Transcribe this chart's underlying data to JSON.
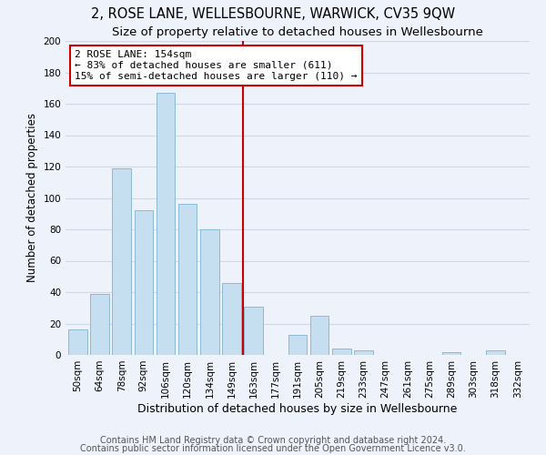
{
  "title1": "2, ROSE LANE, WELLESBOURNE, WARWICK, CV35 9QW",
  "title2": "Size of property relative to detached houses in Wellesbourne",
  "xlabel": "Distribution of detached houses by size in Wellesbourne",
  "ylabel": "Number of detached properties",
  "footer1": "Contains HM Land Registry data © Crown copyright and database right 2024.",
  "footer2": "Contains public sector information licensed under the Open Government Licence v3.0.",
  "bar_labels": [
    "50sqm",
    "64sqm",
    "78sqm",
    "92sqm",
    "106sqm",
    "120sqm",
    "134sqm",
    "149sqm",
    "163sqm",
    "177sqm",
    "191sqm",
    "205sqm",
    "219sqm",
    "233sqm",
    "247sqm",
    "261sqm",
    "275sqm",
    "289sqm",
    "303sqm",
    "318sqm",
    "332sqm"
  ],
  "bar_values": [
    16,
    39,
    119,
    92,
    167,
    96,
    80,
    46,
    31,
    0,
    13,
    25,
    4,
    3,
    0,
    0,
    0,
    2,
    0,
    3,
    0
  ],
  "bar_color": "#c5dff0",
  "bar_edge_color": "#8bbad4",
  "grid_color": "#d0d8e8",
  "vline_x": 8,
  "vline_color": "#cc0000",
  "annotation_line1": "2 ROSE LANE: 154sqm",
  "annotation_line2": "← 83% of detached houses are smaller (611)",
  "annotation_line3": "15% of semi-detached houses are larger (110) →",
  "annotation_box_color": "#ffffff",
  "annotation_box_edge": "#cc0000",
  "ylim": [
    0,
    200
  ],
  "yticks": [
    0,
    20,
    40,
    60,
    80,
    100,
    120,
    140,
    160,
    180,
    200
  ],
  "bg_color": "#eef2fb",
  "plot_bg_color": "#eef2fb",
  "title1_fontsize": 10.5,
  "title2_fontsize": 9.5,
  "xlabel_fontsize": 9,
  "ylabel_fontsize": 8.5,
  "tick_fontsize": 7.5,
  "annot_fontsize": 8,
  "footer_fontsize": 7
}
